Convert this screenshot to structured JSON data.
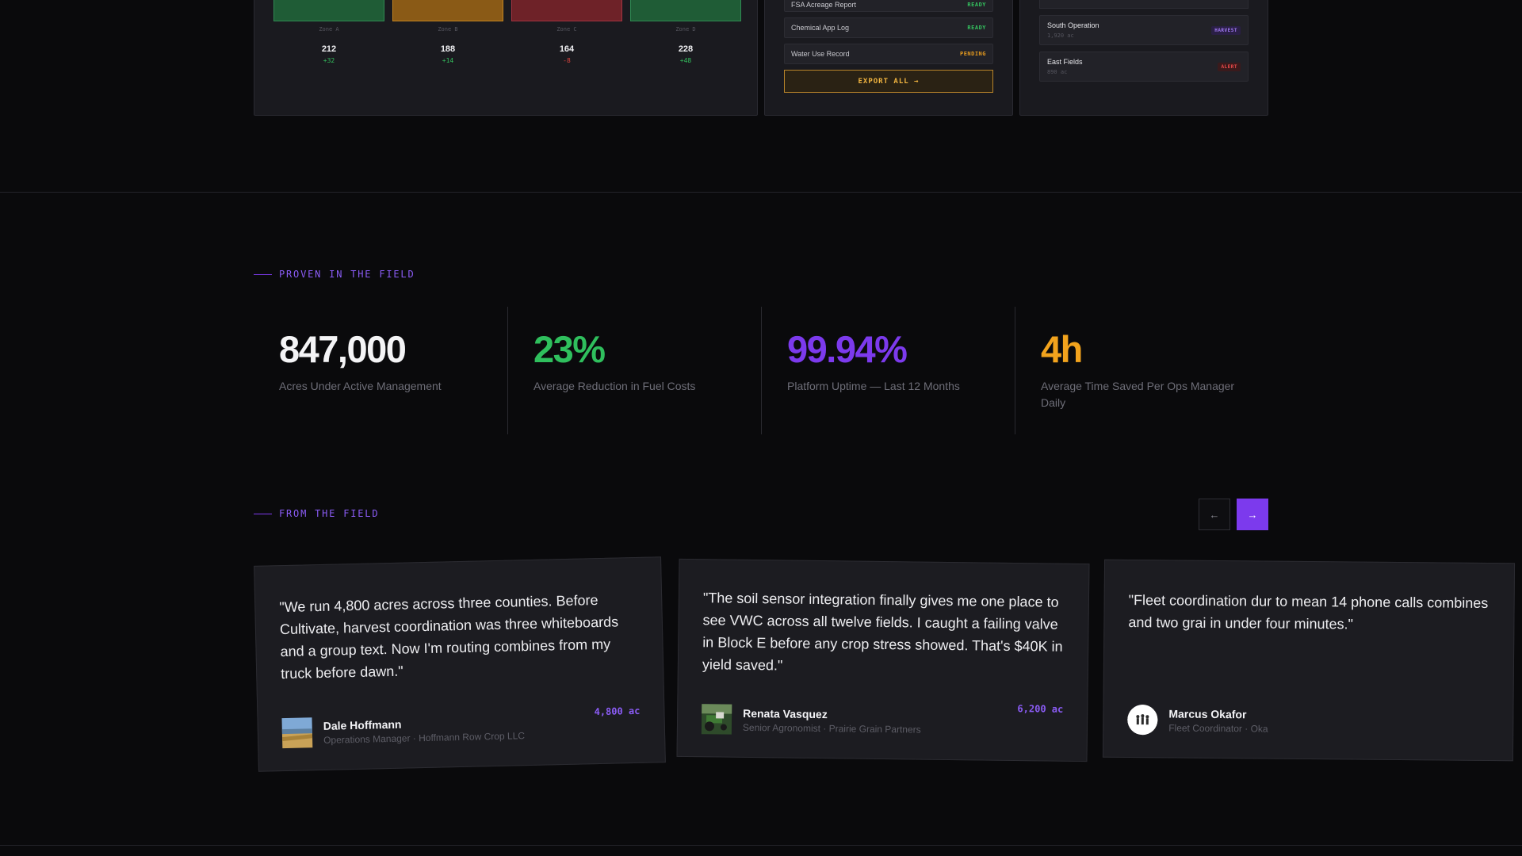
{
  "dashboard": {
    "zones": [
      {
        "name": "Zone A",
        "value": "212",
        "delta": "+32",
        "bar_color": "#1f5c36",
        "border_color": "#2f8a52",
        "delta_color": "#34c05e"
      },
      {
        "name": "Zone B",
        "value": "188",
        "delta": "+14",
        "bar_color": "#8a5a16",
        "border_color": "#c4841f",
        "delta_color": "#34c05e"
      },
      {
        "name": "Zone C",
        "value": "164",
        "delta": "-8",
        "bar_color": "#6e2228",
        "border_color": "#a23340",
        "delta_color": "#e0443f"
      },
      {
        "name": "Zone D",
        "value": "228",
        "delta": "+48",
        "bar_color": "#1f5c36",
        "border_color": "#2f8a52",
        "delta_color": "#34c05e"
      }
    ],
    "reports": [
      {
        "name": "FSA Acreage Report",
        "status": "READY",
        "status_color": "#34c05e"
      },
      {
        "name": "Chemical App Log",
        "status": "READY",
        "status_color": "#34c05e"
      },
      {
        "name": "Water Use Record",
        "status": "PENDING",
        "status_color": "#e59a1f"
      }
    ],
    "export_label": "EXPORT ALL →",
    "operations": [
      {
        "name": "South Operation",
        "acres": "1,920 ac",
        "tag": "HARVEST",
        "tag_color": "#a37af7",
        "tag_bg": "#2a1f45"
      },
      {
        "name": "East Fields",
        "acres": "890 ac",
        "tag": "ALERT",
        "tag_color": "#ef4b4b",
        "tag_bg": "#3a1a1c"
      }
    ]
  },
  "proven": {
    "eyebrow": "PROVEN IN THE FIELD",
    "stats": [
      {
        "value": "847,000",
        "label": "Acres Under Active Management",
        "color": "#f4f4f6"
      },
      {
        "value": "23%",
        "label": "Average Reduction in Fuel Costs",
        "color": "#2fbf5d"
      },
      {
        "value": "99.94%",
        "label": "Platform Uptime — Last 12 Months",
        "color": "#7c3aed"
      },
      {
        "value": "4h",
        "label": "Average Time Saved Per Ops Manager Daily",
        "color": "#f2a31d"
      }
    ]
  },
  "testimonials": {
    "eyebrow": "FROM THE FIELD",
    "prev_label": "←",
    "next_label": "→",
    "items": [
      {
        "quote": "\"We run 4,800 acres across three counties. Before Cultivate, harvest coordination was three whiteboards and a group text. Now I'm routing combines from my truck before dawn.\"",
        "name": "Dale Hoffmann",
        "role": "Operations Manager · Hoffmann Row Crop LLC",
        "acres": "4,800 ac",
        "avatar": "field-photo"
      },
      {
        "quote": "\"The soil sensor integration finally gives me one place to see VWC across all twelve fields. I caught a failing valve in Block E before any crop stress showed. That's $40K in yield saved.\"",
        "name": "Renata Vasquez",
        "role": "Senior Agronomist · Prairie Grain Partners",
        "acres": "6,200 ac",
        "avatar": "tractor-photo"
      },
      {
        "quote": "\"Fleet coordination dur to mean 14 phone calls combines and two grai in under four minutes.\"",
        "name": "Marcus Okafor",
        "role": "Fleet Coordinator · Oka",
        "acres": "",
        "avatar": "team-logo"
      }
    ]
  }
}
